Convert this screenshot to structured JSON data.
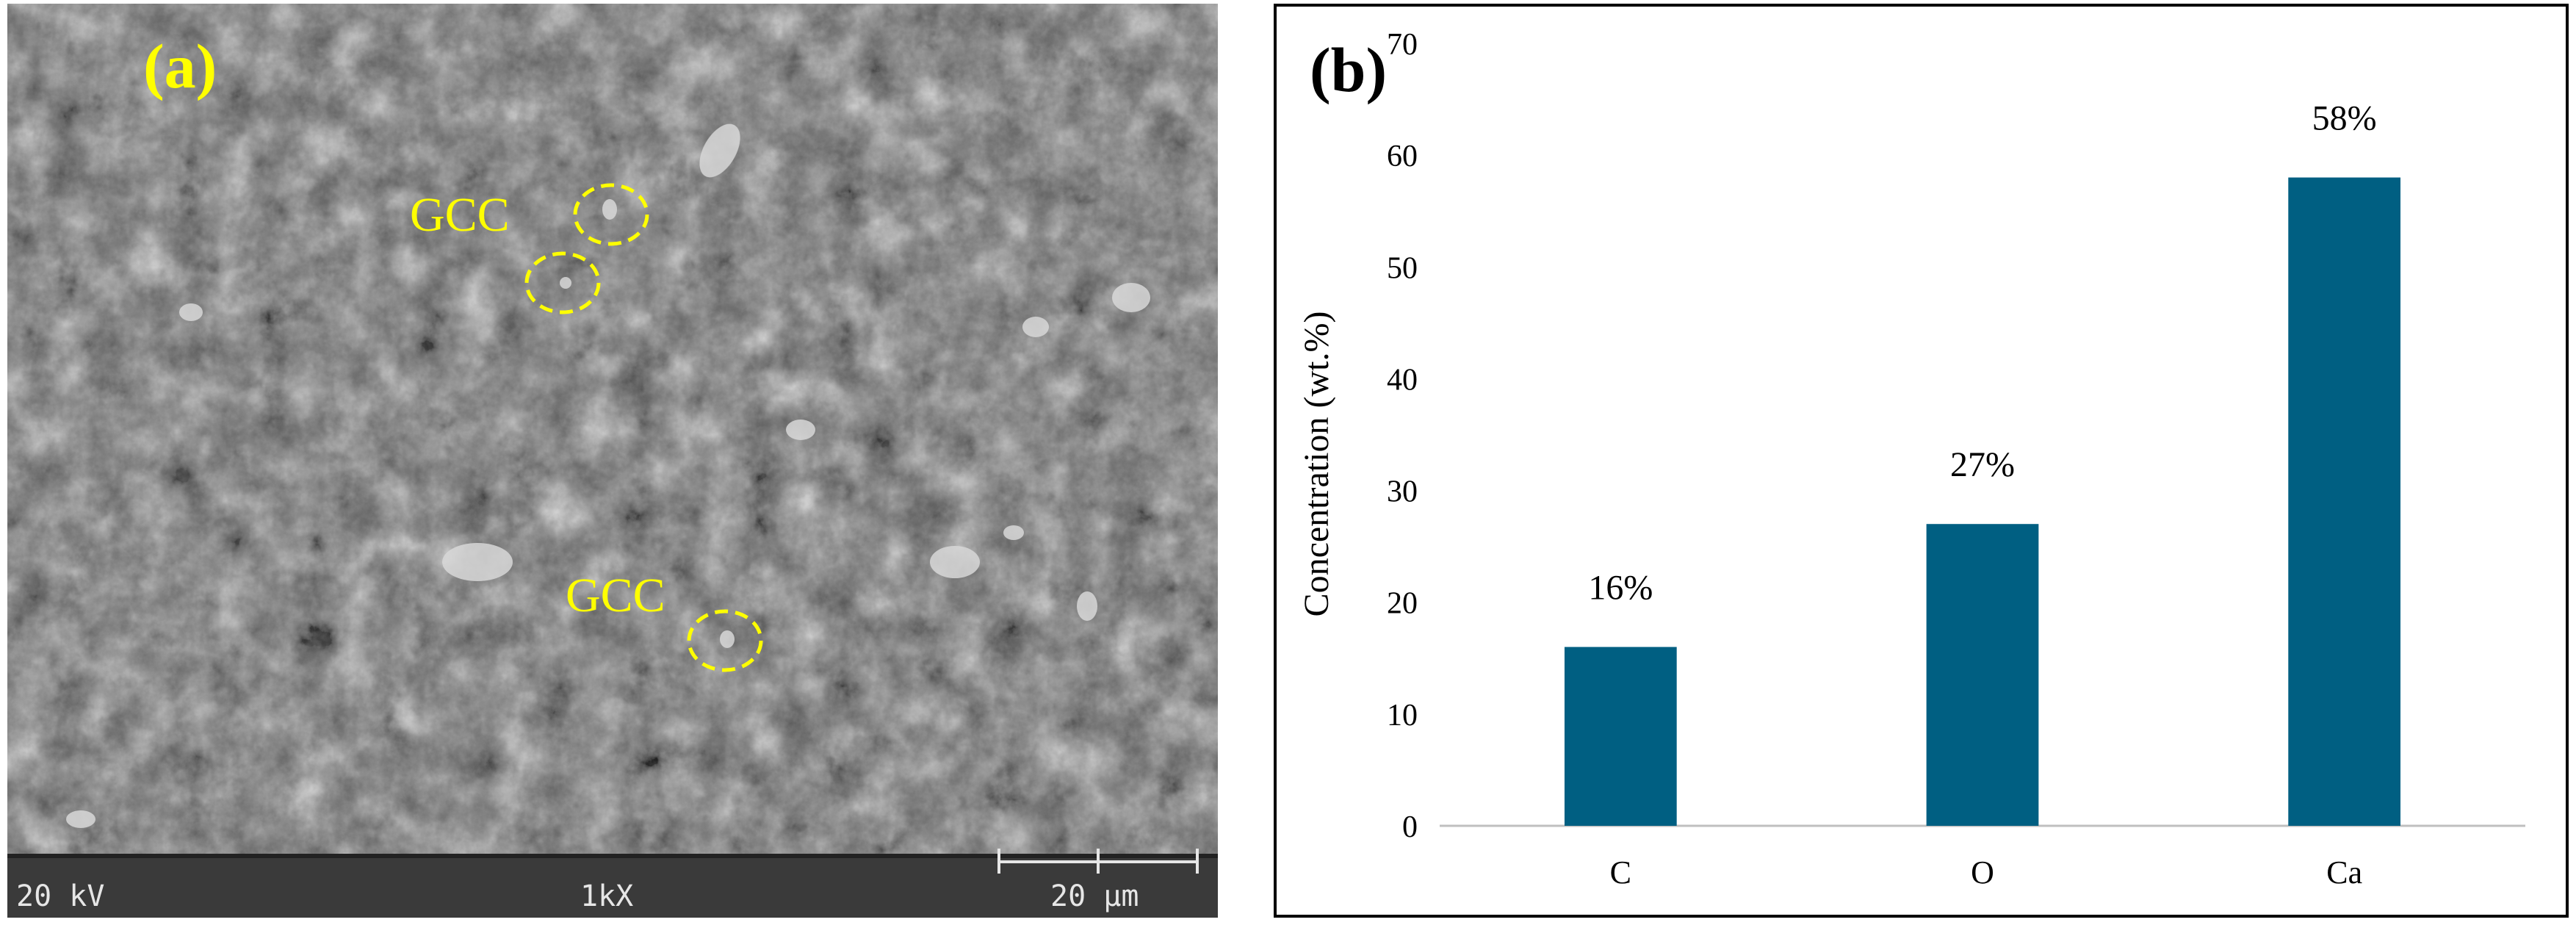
{
  "sem_panel": {
    "panel_label": "(a)",
    "annotations": [
      {
        "label": "GCC"
      },
      {
        "label": "GCC"
      }
    ],
    "info_bar": {
      "voltage": "20 kV",
      "magnification": "1kX",
      "scale_bar": "20 μm"
    },
    "colors": {
      "annotation": "#ffff00",
      "panel_label": "#ffff00"
    }
  },
  "chart_panel": {
    "panel_label": "(b)"
  },
  "chart_data": {
    "type": "bar",
    "categories": [
      "C",
      "O",
      "Ca"
    ],
    "values": [
      16,
      27,
      58
    ],
    "data_labels": [
      "16%",
      "27%",
      "58%"
    ],
    "title": "",
    "xlabel": "",
    "ylabel": "Concentration (wt.%)",
    "ylim": [
      0,
      70
    ],
    "yticks": [
      0,
      10,
      20,
      30,
      40,
      50,
      60,
      70
    ],
    "grid": false,
    "bar_color": "#005f82"
  }
}
